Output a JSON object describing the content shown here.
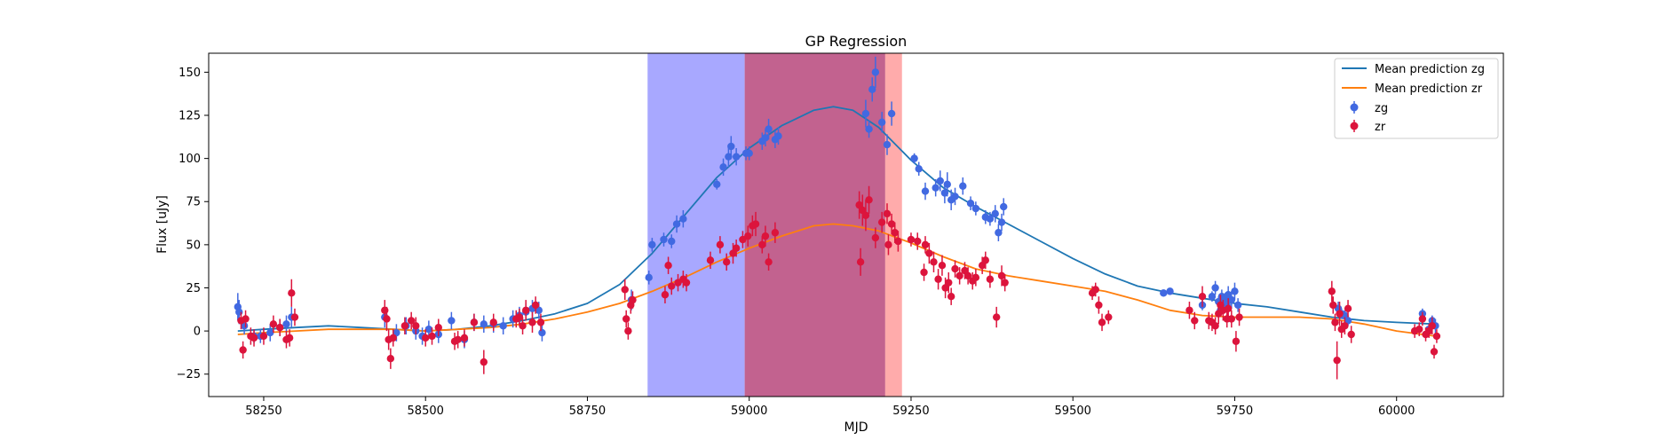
{
  "chart_data": {
    "type": "scatter",
    "title": "GP Regression",
    "xlabel": "MJD",
    "ylabel": "Flux [uJy]",
    "xlim": [
      58165,
      60165
    ],
    "ylim": [
      -38,
      161
    ],
    "xticks": [
      58250,
      58500,
      58750,
      59000,
      59250,
      59500,
      59750,
      60000
    ],
    "yticks": [
      -25,
      0,
      25,
      50,
      75,
      100,
      125,
      150
    ],
    "grid": false,
    "legend_position": "top-right",
    "shaded_regions": [
      {
        "x0": 58843,
        "x1": 58993,
        "color": "#0000ff",
        "opacity": 0.34
      },
      {
        "x0": 58993,
        "x1": 59210,
        "color": "#c2628f",
        "opacity": 1
      },
      {
        "x0": 59210,
        "x1": 59236,
        "color": "#ff0000",
        "opacity": 0.33
      }
    ],
    "series": [
      {
        "name": "Mean prediction zg",
        "kind": "line",
        "color": "#1f77b4",
        "x": [
          58210,
          58250,
          58300,
          58350,
          58400,
          58450,
          58500,
          58550,
          58600,
          58650,
          58700,
          58750,
          58800,
          58850,
          58900,
          58950,
          59000,
          59050,
          59100,
          59130,
          59160,
          59200,
          59250,
          59300,
          59350,
          59400,
          59450,
          59500,
          59550,
          59600,
          59650,
          59700,
          59750,
          59800,
          59850,
          59900,
          59950,
          60000,
          60060
        ],
        "y": [
          0,
          1,
          2,
          3,
          2,
          1,
          0,
          1,
          3,
          6,
          10,
          16,
          27,
          45,
          67,
          89,
          106,
          119,
          128,
          130,
          128,
          118,
          99,
          83,
          72,
          62,
          52,
          42,
          33,
          26,
          22,
          19,
          16,
          14,
          11,
          8,
          6,
          5,
          4
        ]
      },
      {
        "name": "Mean prediction zr",
        "kind": "line",
        "color": "#ff7f0e",
        "x": [
          58210,
          58250,
          58300,
          58350,
          58400,
          58450,
          58500,
          58550,
          58600,
          58650,
          58700,
          58750,
          58800,
          58850,
          58900,
          58950,
          59000,
          59050,
          59100,
          59130,
          59160,
          59200,
          59250,
          59300,
          59350,
          59400,
          59450,
          59500,
          59550,
          59600,
          59650,
          59700,
          59750,
          59800,
          59850,
          59900,
          59950,
          60000,
          60060
        ],
        "y": [
          -2,
          -1,
          0,
          1,
          1,
          1,
          0,
          1,
          2,
          4,
          7,
          11,
          16,
          23,
          31,
          40,
          48,
          55,
          61,
          62,
          61,
          58,
          51,
          43,
          36,
          32,
          29,
          26,
          23,
          18,
          12,
          9,
          8,
          8,
          8,
          7,
          4,
          0,
          -3
        ]
      },
      {
        "name": "zg",
        "kind": "errorbar",
        "color": "#4169e1",
        "x": [
          58210,
          58212,
          58220,
          58235,
          58245,
          58260,
          58275,
          58285,
          58293,
          58437,
          58455,
          58470,
          58485,
          58495,
          58505,
          58520,
          58540,
          58560,
          58575,
          58590,
          58605,
          58620,
          58635,
          58645,
          58655,
          58665,
          58675,
          58680,
          58818,
          58845,
          58850,
          58868,
          58880,
          58888,
          58898,
          58950,
          58960,
          58968,
          58972,
          58980,
          58995,
          59000,
          59020,
          59025,
          59030,
          59040,
          59045,
          59180,
          59185,
          59190,
          59195,
          59205,
          59213,
          59220,
          59255,
          59262,
          59272,
          59288,
          59295,
          59302,
          59306,
          59312,
          59318,
          59330,
          59342,
          59350,
          59365,
          59372,
          59380,
          59385,
          59390,
          59393,
          59640,
          59650,
          59700,
          59715,
          59720,
          59725,
          59728,
          59730,
          59735,
          59738,
          59740,
          59745,
          59750,
          59755,
          59910,
          59915,
          59920,
          59925,
          60040,
          60050,
          60055,
          60060
        ],
        "y": [
          14,
          11,
          3,
          -3,
          -3,
          -1,
          2,
          4,
          8,
          8,
          -1,
          3,
          0,
          -3,
          1,
          -2,
          6,
          -5,
          5,
          4,
          4,
          3,
          7,
          9,
          11,
          13,
          12,
          -1,
          18,
          31,
          50,
          53,
          52,
          62,
          65,
          85,
          95,
          101,
          107,
          101,
          103,
          103,
          110,
          112,
          117,
          111,
          113,
          126,
          117,
          140,
          150,
          121,
          108,
          126,
          100,
          94,
          81,
          83,
          87,
          80,
          85,
          76,
          78,
          84,
          74,
          71,
          66,
          65,
          68,
          57,
          63,
          72,
          22,
          23,
          15,
          20,
          25,
          17,
          12,
          20,
          18,
          15,
          21,
          18,
          23,
          15,
          13,
          10,
          9,
          6,
          10,
          1,
          6,
          3
        ],
        "yerr": [
          8,
          7,
          5,
          4,
          4,
          5,
          5,
          5,
          6,
          6,
          5,
          5,
          5,
          5,
          5,
          5,
          5,
          5,
          5,
          5,
          5,
          5,
          5,
          5,
          5,
          5,
          5,
          5,
          6,
          4,
          4,
          4,
          4,
          5,
          5,
          3,
          5,
          6,
          6,
          5,
          4,
          4,
          5,
          5,
          6,
          5,
          5,
          8,
          5,
          7,
          9,
          6,
          6,
          7,
          3,
          4,
          5,
          5,
          6,
          6,
          7,
          6,
          5,
          5,
          4,
          4,
          4,
          4,
          5,
          5,
          5,
          5,
          2,
          2,
          3,
          3,
          4,
          3,
          3,
          4,
          4,
          4,
          5,
          5,
          5,
          4,
          4,
          3,
          3,
          3,
          3,
          3,
          3,
          4
        ]
      },
      {
        "name": "zr",
        "kind": "errorbar",
        "color": "#dc143c",
        "x": [
          58215,
          58218,
          58222,
          58230,
          58235,
          58250,
          58265,
          58275,
          58285,
          58290,
          58293,
          58298,
          58437,
          58440,
          58443,
          58446,
          58450,
          58468,
          58478,
          58485,
          58500,
          58510,
          58520,
          58545,
          58550,
          58560,
          58575,
          58590,
          58605,
          58640,
          58645,
          58650,
          58655,
          58665,
          58670,
          58678,
          58808,
          58810,
          58813,
          58817,
          58820,
          58870,
          58875,
          58880,
          58890,
          58898,
          58903,
          58940,
          58955,
          58965,
          58975,
          58980,
          58990,
          58998,
          59005,
          59010,
          59020,
          59025,
          59030,
          59040,
          59170,
          59172,
          59175,
          59180,
          59185,
          59195,
          59205,
          59213,
          59215,
          59220,
          59225,
          59230,
          59250,
          59260,
          59270,
          59272,
          59278,
          59285,
          59292,
          59298,
          59303,
          59308,
          59312,
          59318,
          59325,
          59333,
          59338,
          59345,
          59350,
          59360,
          59365,
          59372,
          59382,
          59390,
          59395,
          59530,
          59535,
          59540,
          59545,
          59555,
          59680,
          59688,
          59700,
          59710,
          59715,
          59720,
          59725,
          59728,
          59732,
          59738,
          59740,
          59745,
          59752,
          59757,
          59900,
          59902,
          59905,
          59908,
          59912,
          59915,
          59920,
          59925,
          59930,
          60028,
          60035,
          60040,
          60045,
          60050,
          60055,
          60058,
          60062
        ],
        "y": [
          6,
          -11,
          7,
          -3,
          -4,
          -3,
          4,
          2,
          -5,
          -4,
          22,
          8,
          12,
          7,
          -5,
          -16,
          -4,
          3,
          6,
          3,
          -4,
          -3,
          2,
          -6,
          -5,
          -4,
          5,
          -18,
          5,
          7,
          8,
          3,
          12,
          5,
          15,
          5,
          24,
          7,
          0,
          15,
          18,
          21,
          38,
          26,
          28,
          30,
          28,
          41,
          50,
          40,
          45,
          48,
          53,
          55,
          61,
          62,
          50,
          55,
          40,
          57,
          73,
          40,
          70,
          67,
          76,
          54,
          63,
          68,
          50,
          62,
          57,
          52,
          53,
          52,
          34,
          50,
          45,
          40,
          30,
          38,
          25,
          28,
          20,
          36,
          32,
          35,
          32,
          29,
          31,
          38,
          41,
          30,
          8,
          32,
          28,
          22,
          24,
          15,
          5,
          8,
          12,
          6,
          20,
          6,
          5,
          3,
          10,
          15,
          12,
          7,
          13,
          7,
          -6,
          8,
          23,
          15,
          5,
          -17,
          10,
          1,
          3,
          13,
          -2,
          0,
          1,
          7,
          -2,
          0,
          3,
          -12,
          -3
        ],
        "yerr": [
          5,
          5,
          5,
          5,
          5,
          5,
          5,
          5,
          5,
          5,
          8,
          5,
          6,
          7,
          6,
          6,
          5,
          5,
          5,
          5,
          5,
          5,
          5,
          5,
          5,
          5,
          5,
          7,
          5,
          5,
          5,
          5,
          6,
          6,
          5,
          5,
          6,
          5,
          5,
          5,
          5,
          5,
          5,
          5,
          5,
          5,
          5,
          5,
          5,
          5,
          6,
          5,
          5,
          6,
          6,
          7,
          5,
          6,
          5,
          6,
          8,
          8,
          9,
          9,
          8,
          6,
          6,
          6,
          6,
          6,
          6,
          6,
          4,
          5,
          5,
          5,
          6,
          6,
          6,
          6,
          6,
          6,
          5,
          5,
          5,
          5,
          5,
          5,
          5,
          5,
          5,
          5,
          6,
          6,
          5,
          4,
          4,
          5,
          5,
          4,
          5,
          5,
          6,
          5,
          5,
          5,
          6,
          6,
          6,
          5,
          6,
          5,
          6,
          5,
          6,
          5,
          5,
          11,
          7,
          5,
          5,
          5,
          5,
          4,
          4,
          4,
          4,
          4,
          5,
          4,
          4
        ]
      }
    ]
  }
}
